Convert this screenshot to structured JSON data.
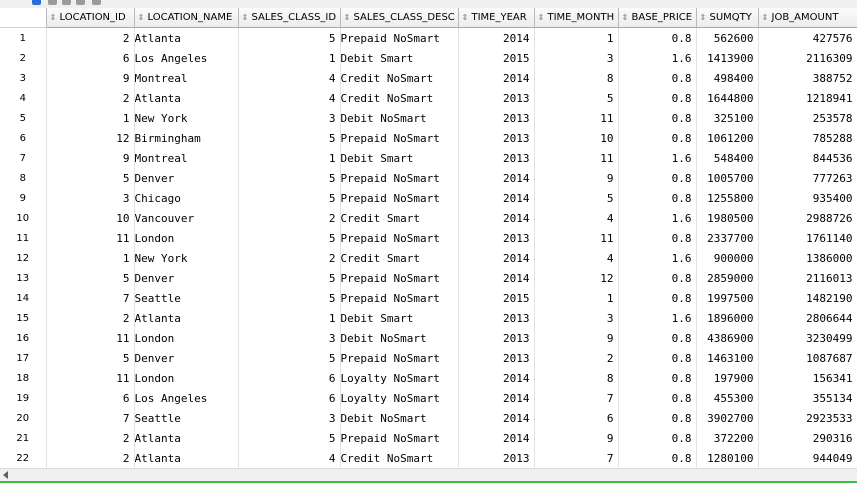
{
  "toolbar": {
    "icons": [
      "refresh-icon",
      "export-icon",
      "sort-icon",
      "filter-icon",
      "options-icon"
    ],
    "colors": [
      "#2a6fd6",
      "#9a9a9a",
      "#9a9a9a",
      "#9a9a9a",
      "#9a9a9a"
    ]
  },
  "columns": [
    "LOCATION_ID",
    "LOCATION_NAME",
    "SALES_CLASS_ID",
    "SALES_CLASS_DESC",
    "TIME_YEAR",
    "TIME_MONTH",
    "BASE_PRICE",
    "SUMQTY",
    "JOB_AMOUNT"
  ],
  "rows": [
    [
      "1",
      "2",
      "Atlanta",
      "5",
      "Prepaid NoSmart",
      "2014",
      "1",
      "0.8",
      "562600",
      "427576"
    ],
    [
      "2",
      "6",
      "Los Angeles",
      "1",
      "Debit Smart",
      "2015",
      "3",
      "1.6",
      "1413900",
      "2116309"
    ],
    [
      "3",
      "9",
      "Montreal",
      "4",
      "Credit NoSmart",
      "2014",
      "8",
      "0.8",
      "498400",
      "388752"
    ],
    [
      "4",
      "2",
      "Atlanta",
      "4",
      "Credit NoSmart",
      "2013",
      "5",
      "0.8",
      "1644800",
      "1218941"
    ],
    [
      "5",
      "1",
      "New York",
      "3",
      "Debit NoSmart",
      "2013",
      "11",
      "0.8",
      "325100",
      "253578"
    ],
    [
      "6",
      "12",
      "Birmingham",
      "5",
      "Prepaid NoSmart",
      "2013",
      "10",
      "0.8",
      "1061200",
      "785288"
    ],
    [
      "7",
      "9",
      "Montreal",
      "1",
      "Debit Smart",
      "2013",
      "11",
      "1.6",
      "548400",
      "844536"
    ],
    [
      "8",
      "5",
      "Denver",
      "5",
      "Prepaid NoSmart",
      "2014",
      "9",
      "0.8",
      "1005700",
      "777263"
    ],
    [
      "9",
      "3",
      "Chicago",
      "5",
      "Prepaid NoSmart",
      "2014",
      "5",
      "0.8",
      "1255800",
      "935400"
    ],
    [
      "10",
      "10",
      "Vancouver",
      "2",
      "Credit Smart",
      "2014",
      "4",
      "1.6",
      "1980500",
      "2988726"
    ],
    [
      "11",
      "11",
      "London",
      "5",
      "Prepaid NoSmart",
      "2013",
      "11",
      "0.8",
      "2337700",
      "1761140"
    ],
    [
      "12",
      "1",
      "New York",
      "2",
      "Credit Smart",
      "2014",
      "4",
      "1.6",
      "900000",
      "1386000"
    ],
    [
      "13",
      "5",
      "Denver",
      "5",
      "Prepaid NoSmart",
      "2014",
      "12",
      "0.8",
      "2859000",
      "2116013"
    ],
    [
      "14",
      "7",
      "Seattle",
      "5",
      "Prepaid NoSmart",
      "2015",
      "1",
      "0.8",
      "1997500",
      "1482190"
    ],
    [
      "15",
      "2",
      "Atlanta",
      "1",
      "Debit Smart",
      "2013",
      "3",
      "1.6",
      "1896000",
      "2806644"
    ],
    [
      "16",
      "11",
      "London",
      "3",
      "Debit NoSmart",
      "2013",
      "9",
      "0.8",
      "4386900",
      "3230499"
    ],
    [
      "17",
      "5",
      "Denver",
      "5",
      "Prepaid NoSmart",
      "2013",
      "2",
      "0.8",
      "1463100",
      "1087687"
    ],
    [
      "18",
      "11",
      "London",
      "6",
      "Loyalty NoSmart",
      "2014",
      "8",
      "0.8",
      "197900",
      "156341"
    ],
    [
      "19",
      "6",
      "Los Angeles",
      "6",
      "Loyalty NoSmart",
      "2014",
      "7",
      "0.8",
      "455300",
      "355134"
    ],
    [
      "20",
      "7",
      "Seattle",
      "3",
      "Debit NoSmart",
      "2014",
      "6",
      "0.8",
      "3902700",
      "2923533"
    ],
    [
      "21",
      "2",
      "Atlanta",
      "5",
      "Prepaid NoSmart",
      "2014",
      "9",
      "0.8",
      "372200",
      "290316"
    ],
    [
      "22",
      "2",
      "Atlanta",
      "4",
      "Credit NoSmart",
      "2013",
      "7",
      "0.8",
      "1280100",
      "944049"
    ]
  ]
}
